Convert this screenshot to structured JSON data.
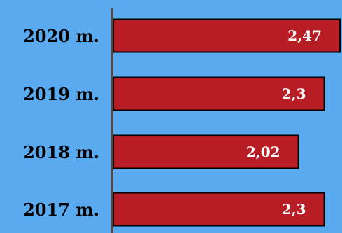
{
  "chart_data": {
    "type": "bar",
    "orientation": "horizontal",
    "categories": [
      "2020 m.",
      "2019 m.",
      "2018 m.",
      "2017 m."
    ],
    "values": [
      2.47,
      2.3,
      2.02,
      2.3
    ],
    "value_labels": [
      "2,47",
      "2,3",
      "2,02",
      "2,3"
    ],
    "title": "",
    "xlabel": "",
    "ylabel": "",
    "xlim": [
      0,
      2.47
    ],
    "grid": false,
    "legend": "none",
    "colors": {
      "background": "#5aaaf0",
      "bar": "#b81c24",
      "bar_border": "#000000",
      "axis": "#4a4a4a",
      "category_text": "#000000",
      "value_text": "#ffffff"
    }
  }
}
